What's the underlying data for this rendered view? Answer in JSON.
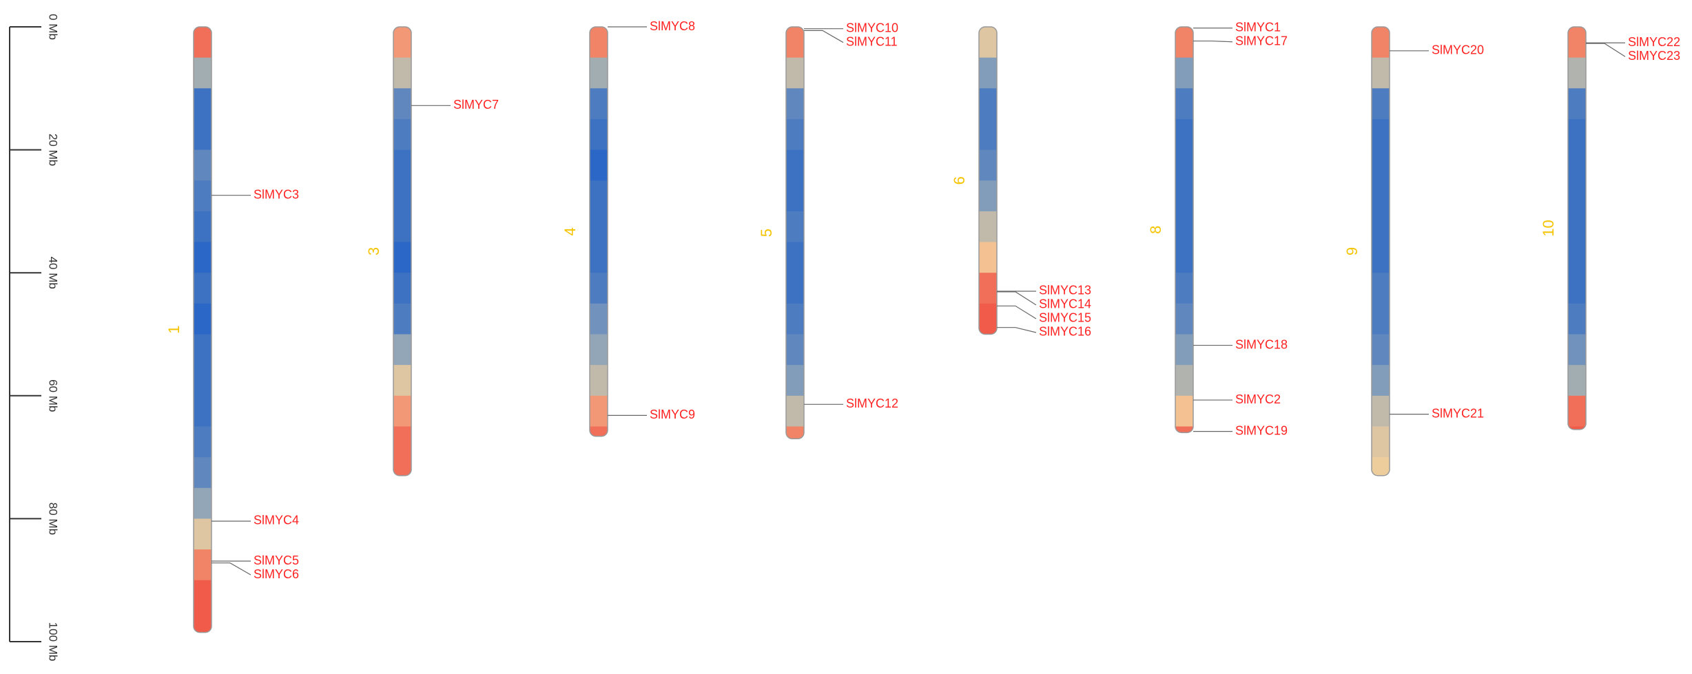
{
  "chart_data": {
    "type": "ideogram",
    "ylim": [
      0,
      100
    ],
    "yticks": [
      {
        "value": 0,
        "label": "0 Mb"
      },
      {
        "value": 20,
        "label": "20 Mb"
      },
      {
        "value": 40,
        "label": "40 Mb"
      },
      {
        "value": 60,
        "label": "60 Mb"
      },
      {
        "value": 80,
        "label": "80 Mb"
      },
      {
        "value": 100,
        "label": "100 Mb"
      }
    ],
    "bin_size": 5,
    "density_colors": [
      "#1a5cc8",
      "#8ea4b8",
      "#f3cf9c",
      "#f0463c"
    ],
    "label_color": "#f5c400",
    "gene_color": "#ff2222",
    "chromosomes": [
      {
        "name": "1",
        "length": 98.5,
        "density": [
          0.9,
          0.4,
          0.1,
          0.1,
          0.2,
          0.15,
          0.1,
          0.05,
          0.1,
          0.05,
          0.1,
          0.1,
          0.1,
          0.15,
          0.2,
          0.35,
          0.6,
          0.85,
          0.95,
          0.95
        ],
        "genes": [
          {
            "name": "SlMYC3",
            "position": 27.4
          },
          {
            "name": "SlMYC4",
            "position": 80.4
          },
          {
            "name": "SlMYC5",
            "position": 86.9
          },
          {
            "name": "SlMYC6",
            "position": 87.2
          }
        ]
      },
      {
        "name": "3",
        "length": 73,
        "density": [
          0.8,
          0.5,
          0.2,
          0.15,
          0.1,
          0.1,
          0.1,
          0.05,
          0.1,
          0.15,
          0.35,
          0.6,
          0.8,
          0.9,
          0.9
        ],
        "genes": [
          {
            "name": "SlMYC7",
            "position": 12.8
          }
        ]
      },
      {
        "name": "4",
        "length": 66.6,
        "density": [
          0.85,
          0.4,
          0.15,
          0.1,
          0.05,
          0.1,
          0.1,
          0.1,
          0.15,
          0.25,
          0.35,
          0.5,
          0.8,
          0.9
        ],
        "genes": [
          {
            "name": "SlMYC8",
            "position": 0
          },
          {
            "name": "SlMYC9",
            "position": 63.2
          }
        ]
      },
      {
        "name": "5",
        "length": 67,
        "density": [
          0.85,
          0.5,
          0.2,
          0.15,
          0.1,
          0.1,
          0.15,
          0.1,
          0.1,
          0.15,
          0.2,
          0.3,
          0.5,
          0.85
        ],
        "genes": [
          {
            "name": "SlMYC10",
            "position": 0.3
          },
          {
            "name": "SlMYC11",
            "position": 0.6
          },
          {
            "name": "SlMYC12",
            "position": 61.4
          }
        ]
      },
      {
        "name": "6",
        "length": 50,
        "density": [
          0.6,
          0.3,
          0.15,
          0.15,
          0.2,
          0.3,
          0.5,
          0.7,
          0.9,
          0.95
        ],
        "genes": [
          {
            "name": "SlMYC13",
            "position": 43
          },
          {
            "name": "SlMYC14",
            "position": 43.1
          },
          {
            "name": "SlMYC15",
            "position": 45.4
          },
          {
            "name": "SlMYC16",
            "position": 48.9
          }
        ]
      },
      {
        "name": "8",
        "length": 66,
        "density": [
          0.85,
          0.3,
          0.15,
          0.1,
          0.1,
          0.1,
          0.1,
          0.1,
          0.15,
          0.2,
          0.3,
          0.45,
          0.7,
          0.9
        ],
        "genes": [
          {
            "name": "SlMYC1",
            "position": 0.2
          },
          {
            "name": "SlMYC17",
            "position": 2.3
          },
          {
            "name": "SlMYC18",
            "position": 51.8
          },
          {
            "name": "SlMYC2",
            "position": 60.7
          },
          {
            "name": "SlMYC19",
            "position": 65.8
          }
        ]
      },
      {
        "name": "9",
        "length": 73,
        "density": [
          0.85,
          0.5,
          0.15,
          0.1,
          0.1,
          0.1,
          0.1,
          0.1,
          0.15,
          0.15,
          0.2,
          0.3,
          0.5,
          0.6,
          0.65
        ],
        "genes": [
          {
            "name": "SlMYC20",
            "position": 3.9
          },
          {
            "name": "SlMYC21",
            "position": 63
          }
        ]
      },
      {
        "name": "10",
        "length": 65.5,
        "density": [
          0.85,
          0.45,
          0.15,
          0.1,
          0.1,
          0.1,
          0.1,
          0.1,
          0.1,
          0.15,
          0.25,
          0.4,
          0.9,
          0.95
        ],
        "genes": [
          {
            "name": "SlMYC22",
            "position": 2.6
          },
          {
            "name": "SlMYC23",
            "position": 2.7
          }
        ]
      }
    ]
  }
}
